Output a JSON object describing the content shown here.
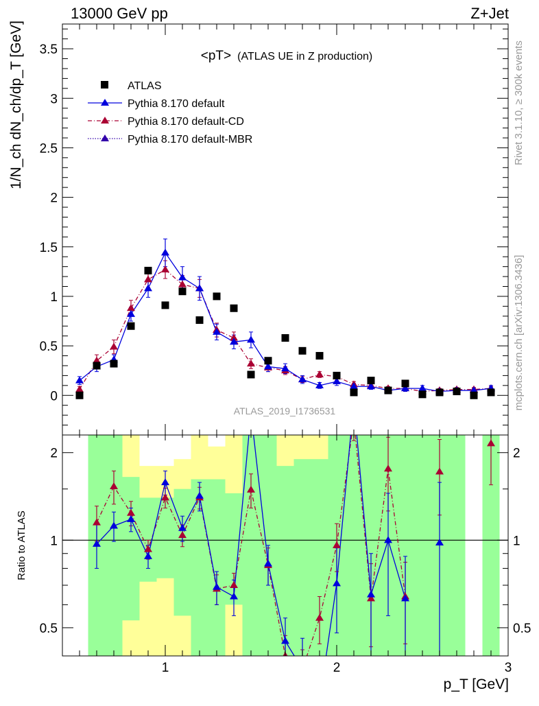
{
  "header": {
    "left": "13000 GeV pp",
    "right": "Z+Jet"
  },
  "side": {
    "rivet": "Rivet 3.1.10, ≥ 300k events",
    "mcplots": "mcplots.cern.ch [arXiv:1306.3436]"
  },
  "labels": {
    "title_main": "<pT>",
    "title_sub": "(ATLAS UE in Z production)",
    "analysis": "ATLAS_2019_I1736531",
    "ylabel": "1/N_ch dN_ch/dp_T [GeV]",
    "ratio_ylabel": "Ratio to ATLAS",
    "xlabel": "p_T [GeV]"
  },
  "colors": {
    "atlas": "#000000",
    "default": "#0000dd",
    "cd": "#aa0033",
    "mbr": "#3300aa",
    "band_inner": "#99ff99",
    "band_outer": "#ffff99"
  },
  "chart_data": {
    "type": "scatter",
    "x_ticks": [
      "1",
      "2",
      "3"
    ],
    "y_ticks": [
      "0",
      "0.5",
      "1",
      "1.5",
      "2",
      "2.5",
      "3",
      "3.5"
    ],
    "ratio_ticks": [
      "0.5",
      "1",
      "2"
    ],
    "xlim": [
      0.4,
      3.0
    ],
    "ylim": [
      -0.4,
      3.75
    ],
    "ratio_ylim": [
      0.4,
      2.3
    ],
    "x": [
      0.5,
      0.6,
      0.7,
      0.8,
      0.9,
      1.0,
      1.1,
      1.2,
      1.3,
      1.4,
      1.5,
      1.6,
      1.7,
      1.8,
      1.9,
      2.0,
      2.1,
      2.2,
      2.3,
      2.4,
      2.5,
      2.6,
      2.7,
      2.8,
      2.9
    ],
    "series": [
      {
        "name": "ATLAS",
        "marker": "square",
        "values": [
          0.0,
          0.3,
          0.32,
          0.7,
          1.26,
          0.91,
          1.05,
          0.76,
          1.0,
          0.88,
          0.21,
          0.35,
          0.58,
          0.45,
          0.4,
          0.2,
          0.03,
          0.15,
          0.05,
          0.12,
          0.01,
          0.03,
          0.04,
          0.0,
          0.03
        ]
      },
      {
        "name": "Pythia 8.170 default",
        "marker": "triangle",
        "line": "solid",
        "values": [
          0.15,
          0.29,
          0.36,
          0.82,
          1.08,
          1.44,
          1.19,
          1.08,
          0.64,
          0.54,
          0.56,
          0.29,
          0.27,
          0.16,
          0.1,
          0.14,
          0.09,
          0.09,
          0.05,
          0.07,
          0.07,
          0.04,
          0.05,
          0.05,
          0.07
        ],
        "errors": [
          0.04,
          0.05,
          0.05,
          0.07,
          0.09,
          0.14,
          0.11,
          0.12,
          0.08,
          0.07,
          0.08,
          0.05,
          0.05,
          0.04,
          0.03,
          0.04,
          0.03,
          0.03,
          0.02,
          0.03,
          0.03,
          0.02,
          0.02,
          0.02,
          0.03
        ]
      },
      {
        "name": "Pythia 8.170 default-CD",
        "marker": "triangle",
        "line": "dashdot",
        "values": [
          0.06,
          0.35,
          0.49,
          0.88,
          1.17,
          1.27,
          1.12,
          1.08,
          0.66,
          0.58,
          0.32,
          0.28,
          0.25,
          0.16,
          0.21,
          0.19,
          0.11,
          0.1,
          0.07,
          0.07,
          0.04,
          0.05,
          0.06,
          0.06,
          0.07
        ],
        "errors": [
          0.03,
          0.06,
          0.07,
          0.08,
          0.08,
          0.09,
          0.09,
          0.09,
          0.07,
          0.06,
          0.05,
          0.04,
          0.04,
          0.03,
          0.03,
          0.04,
          0.03,
          0.03,
          0.02,
          0.02,
          0.02,
          0.02,
          0.02,
          0.02,
          0.02
        ]
      },
      {
        "name": "Pythia 8.170 default-MBR",
        "marker": "triangle",
        "line": "dotted",
        "values": []
      }
    ],
    "ratio_series": [
      {
        "name": "Pythia 8.170 default",
        "values": [
          null,
          0.97,
          1.12,
          1.18,
          0.88,
          1.58,
          1.1,
          1.42,
          0.69,
          0.64,
          2.75,
          0.83,
          0.45,
          0.36,
          0.25,
          0.71,
          3.0,
          0.65,
          1.0,
          0.63,
          null,
          0.98,
          null,
          null,
          null
        ],
        "errors": [
          null,
          0.17,
          0.13,
          0.11,
          0.08,
          0.15,
          0.11,
          0.16,
          0.09,
          0.09,
          0.4,
          0.13,
          0.09,
          0.1,
          0.08,
          0.23,
          0.4,
          0.25,
          0.45,
          0.25,
          null,
          0.6,
          null,
          null,
          null
        ]
      },
      {
        "name": "Pythia 8.170 default-CD",
        "values": [
          null,
          1.15,
          1.53,
          1.24,
          0.93,
          1.4,
          1.04,
          1.4,
          0.68,
          0.7,
          1.49,
          0.82,
          0.4,
          0.36,
          0.54,
          0.96,
          2.6,
          0.63,
          1.76,
          0.64,
          null,
          1.72,
          null,
          null,
          2.15
        ],
        "errors": [
          null,
          0.16,
          0.2,
          0.12,
          0.07,
          0.11,
          0.09,
          0.12,
          0.08,
          0.07,
          0.2,
          0.12,
          0.07,
          0.06,
          0.1,
          0.18,
          0.4,
          0.2,
          0.5,
          0.2,
          null,
          0.5,
          null,
          null,
          0.6
        ]
      }
    ],
    "ratio_bands": [
      {
        "x": [
          0.55,
          0.65
        ],
        "inner": [
          0.4,
          2.3
        ],
        "outer": [
          0.4,
          2.3
        ]
      },
      {
        "x": [
          0.65,
          0.75
        ],
        "inner": [
          0.4,
          2.3
        ],
        "outer": [
          0.4,
          2.3
        ]
      },
      {
        "x": [
          0.75,
          0.85
        ],
        "inner": [
          0.53,
          1.65
        ],
        "outer": [
          0.4,
          2.3
        ]
      },
      {
        "x": [
          0.85,
          0.95
        ],
        "inner": [
          0.72,
          1.4
        ],
        "outer": [
          0.4,
          1.8
        ]
      },
      {
        "x": [
          0.95,
          1.05
        ],
        "inner": [
          0.74,
          1.4
        ],
        "outer": [
          0.4,
          1.8
        ]
      },
      {
        "x": [
          1.05,
          1.15
        ],
        "inner": [
          0.55,
          1.5
        ],
        "outer": [
          0.4,
          1.9
        ]
      },
      {
        "x": [
          1.15,
          1.25
        ],
        "inner": [
          0.4,
          1.62
        ],
        "outer": [
          0.4,
          2.3
        ]
      },
      {
        "x": [
          1.25,
          1.35
        ],
        "inner": [
          0.4,
          1.62
        ],
        "outer": [
          0.4,
          2.1
        ]
      },
      {
        "x": [
          1.35,
          1.45
        ],
        "inner": [
          0.6,
          1.45
        ],
        "outer": [
          0.4,
          2.3
        ]
      },
      {
        "x": [
          1.45,
          1.55
        ],
        "inner": [
          0.4,
          2.3
        ],
        "outer": [
          0.4,
          2.3
        ]
      },
      {
        "x": [
          1.55,
          1.65
        ],
        "inner": [
          0.4,
          2.3
        ],
        "outer": [
          0.4,
          2.3
        ]
      },
      {
        "x": [
          1.65,
          1.75
        ],
        "inner": [
          0.4,
          1.8
        ],
        "outer": [
          0.4,
          2.3
        ]
      },
      {
        "x": [
          1.75,
          1.85
        ],
        "inner": [
          0.4,
          1.9
        ],
        "outer": [
          0.4,
          2.3
        ]
      },
      {
        "x": [
          1.85,
          1.95
        ],
        "inner": [
          0.4,
          1.9
        ],
        "outer": [
          0.4,
          2.3
        ]
      },
      {
        "x": [
          1.95,
          2.05
        ],
        "inner": [
          0.4,
          2.3
        ],
        "outer": [
          0.4,
          2.3
        ]
      },
      {
        "x": [
          2.05,
          2.15
        ],
        "inner": [
          0.4,
          2.3
        ],
        "outer": [
          0.4,
          2.3
        ]
      },
      {
        "x": [
          2.15,
          2.25
        ],
        "inner": [
          0.4,
          2.3
        ],
        "outer": [
          0.4,
          2.3
        ]
      },
      {
        "x": [
          2.25,
          2.35
        ],
        "inner": [
          0.4,
          2.3
        ],
        "outer": [
          0.4,
          2.3
        ]
      },
      {
        "x": [
          2.35,
          2.45
        ],
        "inner": [
          0.4,
          2.3
        ],
        "outer": [
          0.4,
          2.3
        ]
      },
      {
        "x": [
          2.45,
          2.55
        ],
        "inner": [
          0.4,
          2.3
        ],
        "outer": [
          0.4,
          2.3
        ]
      },
      {
        "x": [
          2.55,
          2.65
        ],
        "inner": [
          0.4,
          2.3
        ],
        "outer": [
          0.4,
          2.3
        ]
      },
      {
        "x": [
          2.65,
          2.75
        ],
        "inner": [
          0.4,
          2.3
        ],
        "outer": [
          0.4,
          2.3
        ]
      },
      {
        "x": [
          2.85,
          2.95
        ],
        "inner": [
          0.4,
          2.3
        ],
        "outer": [
          0.4,
          2.3
        ]
      }
    ]
  }
}
